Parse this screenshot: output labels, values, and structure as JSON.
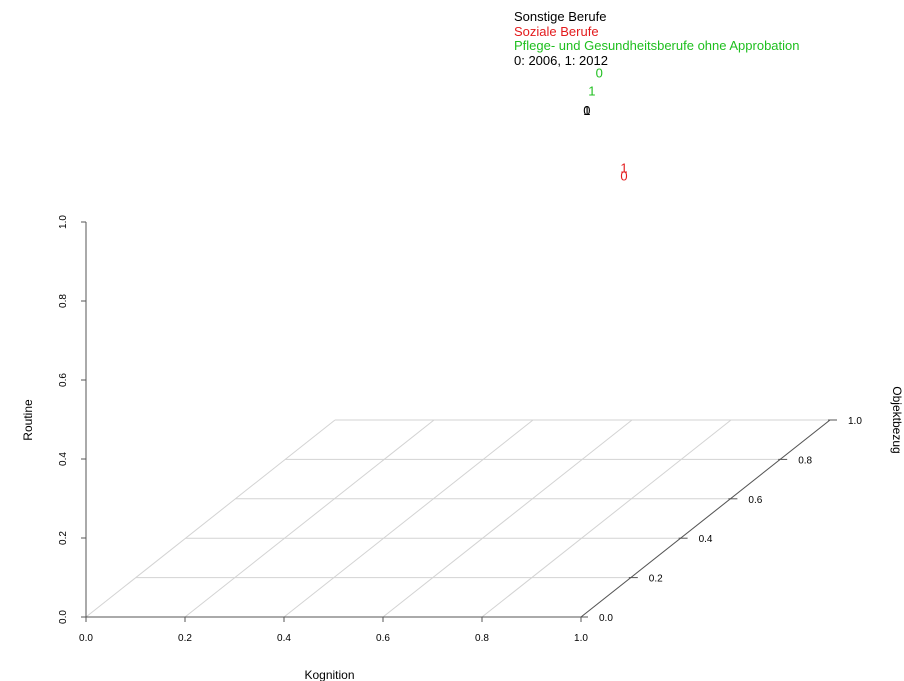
{
  "legend": {
    "items": [
      {
        "label": "Sonstige Berufe",
        "color": "#000000"
      },
      {
        "label": "Soziale Berufe",
        "color": "#e31a1c"
      },
      {
        "label": "Pflege- und Gesundheitsberufe ohne Approbation",
        "color": "#1fbf1f"
      },
      {
        "label": "0: 2006, 1: 2012",
        "color": "#000000"
      }
    ]
  },
  "chart_data": {
    "type": "scatter",
    "xlabel": "Kognition",
    "ylabel": "Objektbezug",
    "zlabel": "Routine",
    "xlim": [
      0,
      1
    ],
    "ylim": [
      0,
      1
    ],
    "zlim": [
      0,
      1
    ],
    "x_ticks": [
      "0.0",
      "0.2",
      "0.4",
      "0.6",
      "0.8",
      "1.0"
    ],
    "y_ticks": [
      "0.0",
      "0.2",
      "0.4",
      "0.6",
      "0.8",
      "1.0"
    ],
    "z_ticks": [
      "0.0",
      "0.2",
      "0.4",
      "0.6",
      "0.8",
      "1.0"
    ],
    "grid": true,
    "series": [
      {
        "name": "Sonstige Berufe",
        "color": "#000000",
        "points": [
          {
            "label": "0",
            "x": 0.7,
            "y": 0.62,
            "z": 0.97
          },
          {
            "label": "1",
            "x": 0.7,
            "y": 0.62,
            "z": 0.97
          }
        ]
      },
      {
        "name": "Soziale Berufe",
        "color": "#e31a1c",
        "points": [
          {
            "label": "0",
            "x": 0.76,
            "y": 0.65,
            "z": 0.79
          },
          {
            "label": "1",
            "x": 0.76,
            "y": 0.65,
            "z": 0.81
          }
        ]
      },
      {
        "name": "Pflege- und Gesundheitsberufe ohne Approbation",
        "color": "#1fbf1f",
        "points": [
          {
            "label": "0",
            "x": 0.73,
            "y": 0.61,
            "z": 1.07
          },
          {
            "label": "1",
            "x": 0.71,
            "y": 0.62,
            "z": 1.02
          }
        ]
      }
    ]
  }
}
